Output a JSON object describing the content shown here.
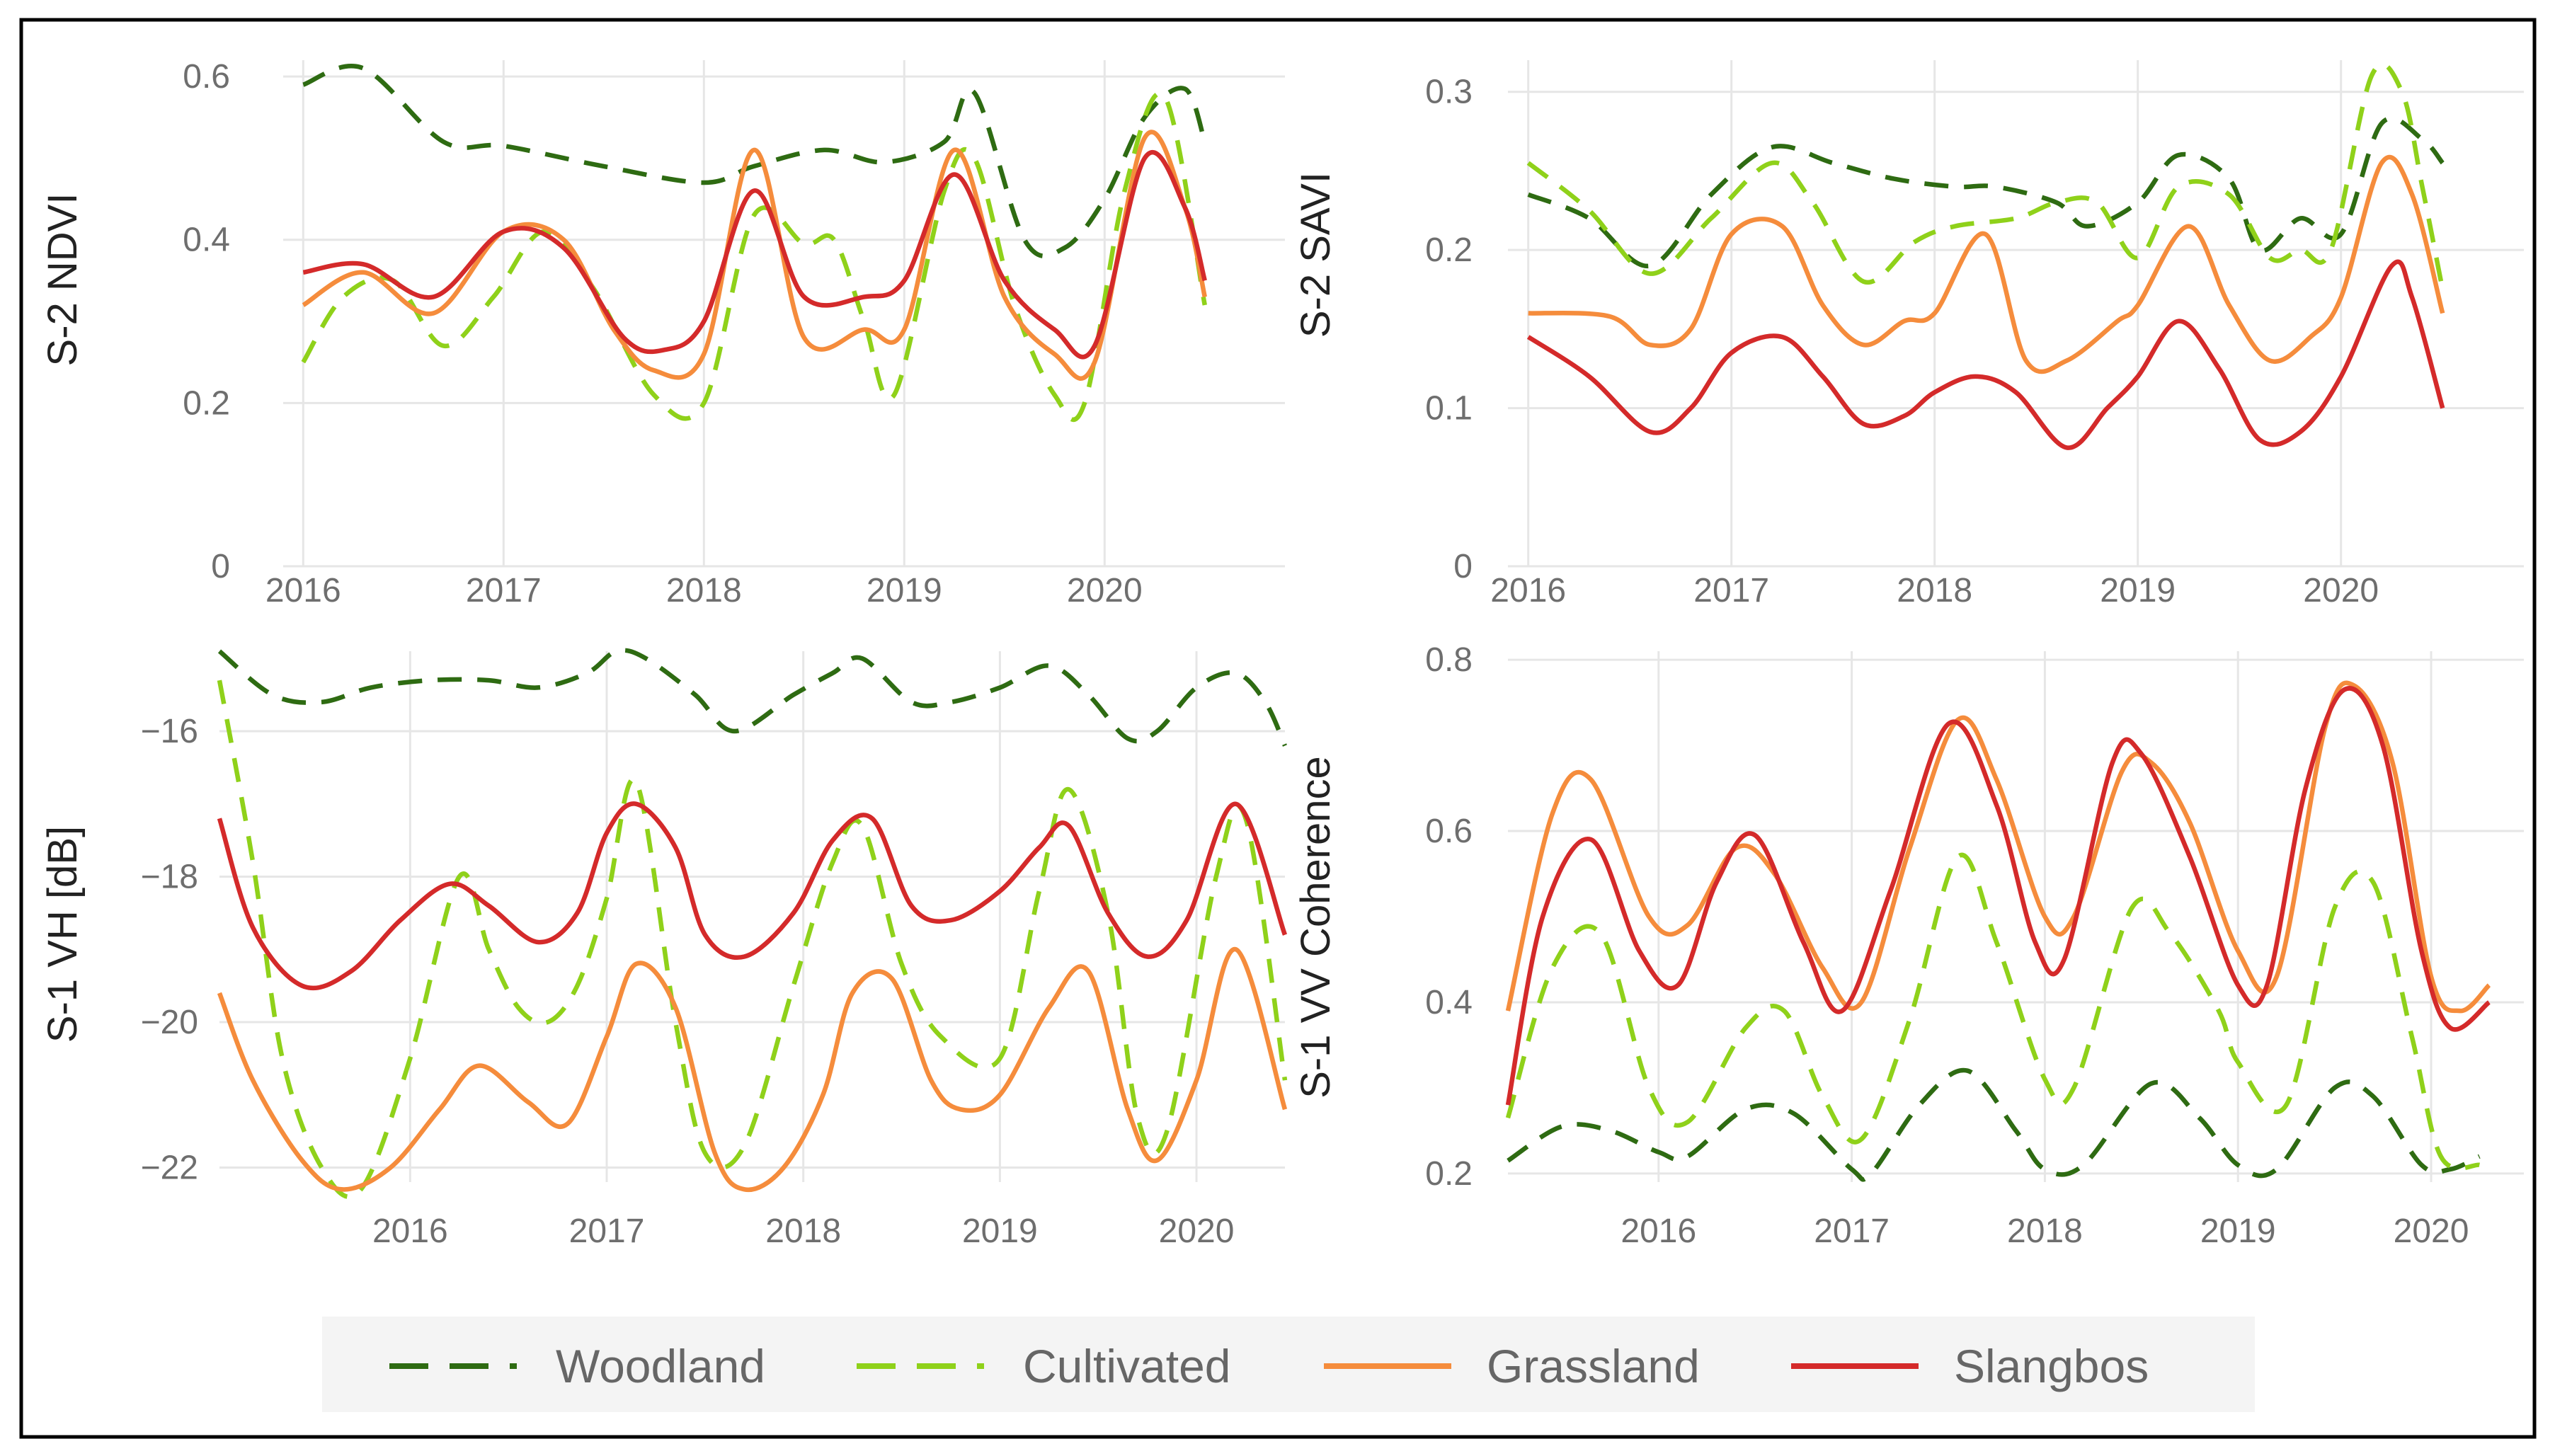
{
  "series_style": [
    {
      "name": "Woodland",
      "color": "#2e6b12",
      "dashed": true
    },
    {
      "name": "Cultivated",
      "color": "#8fd11a",
      "dashed": true
    },
    {
      "name": "Grassland",
      "color": "#f58c3c",
      "dashed": false
    },
    {
      "name": "Slangbos",
      "color": "#d42a2a",
      "dashed": false
    }
  ],
  "chart_data": [
    {
      "type": "line",
      "id": "ndvi",
      "ylabel": "S-2 NDVI",
      "xlim": [
        2015.9,
        2020.9
      ],
      "ylim": [
        0,
        0.62
      ],
      "yticks": [
        0,
        0.2,
        0.4,
        0.6
      ],
      "ytick_labels": [
        "0",
        "0.2",
        "0.4",
        "0.6"
      ],
      "xticks": [
        2016,
        2017,
        2018,
        2019,
        2020
      ],
      "xtick_labels": [
        "2016",
        "2017",
        "2018",
        "2019",
        "2020"
      ],
      "series": [
        {
          "name": "Woodland",
          "x": [
            2016.0,
            2016.3,
            2016.7,
            2017.0,
            2017.5,
            2018.0,
            2018.25,
            2018.6,
            2018.9,
            2019.2,
            2019.35,
            2019.6,
            2019.8,
            2020.0,
            2020.2,
            2020.4,
            2020.5
          ],
          "y": [
            0.59,
            0.61,
            0.52,
            0.515,
            0.49,
            0.47,
            0.49,
            0.51,
            0.495,
            0.52,
            0.58,
            0.4,
            0.39,
            0.45,
            0.55,
            0.585,
            0.52
          ]
        },
        {
          "name": "Cultivated",
          "x": [
            2016.0,
            2016.2,
            2016.45,
            2016.7,
            2016.95,
            2017.2,
            2017.45,
            2017.75,
            2018.0,
            2018.25,
            2018.5,
            2018.65,
            2018.8,
            2018.95,
            2019.2,
            2019.35,
            2019.55,
            2019.75,
            2019.9,
            2020.1,
            2020.3,
            2020.5
          ],
          "y": [
            0.25,
            0.33,
            0.35,
            0.27,
            0.33,
            0.41,
            0.34,
            0.21,
            0.2,
            0.43,
            0.395,
            0.4,
            0.3,
            0.21,
            0.46,
            0.5,
            0.32,
            0.21,
            0.2,
            0.46,
            0.575,
            0.32
          ]
        },
        {
          "name": "Grassland",
          "x": [
            2016.0,
            2016.3,
            2016.65,
            2017.0,
            2017.3,
            2017.55,
            2017.75,
            2018.0,
            2018.25,
            2018.5,
            2018.8,
            2019.0,
            2019.25,
            2019.5,
            2019.75,
            2019.95,
            2020.2,
            2020.4,
            2020.5
          ],
          "y": [
            0.32,
            0.36,
            0.31,
            0.41,
            0.4,
            0.29,
            0.24,
            0.26,
            0.51,
            0.28,
            0.29,
            0.29,
            0.51,
            0.33,
            0.26,
            0.25,
            0.525,
            0.44,
            0.33
          ]
        },
        {
          "name": "Slangbos",
          "x": [
            2016.0,
            2016.3,
            2016.65,
            2017.0,
            2017.3,
            2017.6,
            2017.8,
            2018.0,
            2018.25,
            2018.5,
            2018.8,
            2019.0,
            2019.25,
            2019.5,
            2019.75,
            2019.95,
            2020.2,
            2020.4,
            2020.5
          ],
          "y": [
            0.36,
            0.37,
            0.33,
            0.41,
            0.39,
            0.28,
            0.265,
            0.3,
            0.46,
            0.33,
            0.33,
            0.35,
            0.48,
            0.35,
            0.29,
            0.27,
            0.5,
            0.44,
            0.35
          ]
        }
      ]
    },
    {
      "type": "line",
      "id": "savi",
      "ylabel": "S-2 SAVI",
      "xlim": [
        2015.9,
        2020.9
      ],
      "ylim": [
        0,
        0.32
      ],
      "yticks": [
        0,
        0.1,
        0.2,
        0.3
      ],
      "ytick_labels": [
        "0",
        "0.1",
        "0.2",
        "0.3"
      ],
      "xticks": [
        2016,
        2017,
        2018,
        2019,
        2020
      ],
      "xtick_labels": [
        "2016",
        "2017",
        "2018",
        "2019",
        "2020"
      ],
      "series": [
        {
          "name": "Woodland",
          "x": [
            2016.0,
            2016.3,
            2016.6,
            2016.9,
            2017.2,
            2017.5,
            2017.8,
            2018.1,
            2018.3,
            2018.6,
            2018.75,
            2019.0,
            2019.2,
            2019.45,
            2019.6,
            2019.8,
            2020.0,
            2020.2,
            2020.4,
            2020.5
          ],
          "y": [
            0.235,
            0.22,
            0.19,
            0.235,
            0.265,
            0.255,
            0.245,
            0.24,
            0.24,
            0.23,
            0.215,
            0.23,
            0.26,
            0.245,
            0.2,
            0.22,
            0.21,
            0.28,
            0.27,
            0.255
          ]
        },
        {
          "name": "Cultivated",
          "x": [
            2016.0,
            2016.3,
            2016.6,
            2016.9,
            2017.2,
            2017.4,
            2017.65,
            2017.9,
            2018.1,
            2018.4,
            2018.6,
            2018.8,
            2019.0,
            2019.2,
            2019.45,
            2019.65,
            2019.8,
            2019.95,
            2020.15,
            2020.3,
            2020.4,
            2020.5
          ],
          "y": [
            0.255,
            0.225,
            0.185,
            0.22,
            0.255,
            0.23,
            0.18,
            0.205,
            0.215,
            0.22,
            0.23,
            0.23,
            0.195,
            0.24,
            0.235,
            0.195,
            0.2,
            0.2,
            0.31,
            0.3,
            0.24,
            0.175
          ]
        },
        {
          "name": "Grassland",
          "x": [
            2016.0,
            2016.4,
            2016.6,
            2016.8,
            2017.0,
            2017.25,
            2017.45,
            2017.65,
            2017.85,
            2018.0,
            2018.25,
            2018.45,
            2018.65,
            2018.9,
            2019.0,
            2019.25,
            2019.45,
            2019.65,
            2019.85,
            2020.0,
            2020.2,
            2020.35,
            2020.5
          ],
          "y": [
            0.16,
            0.158,
            0.14,
            0.15,
            0.21,
            0.215,
            0.165,
            0.14,
            0.155,
            0.16,
            0.21,
            0.13,
            0.13,
            0.155,
            0.165,
            0.215,
            0.165,
            0.13,
            0.145,
            0.17,
            0.255,
            0.235,
            0.16
          ]
        },
        {
          "name": "Slangbos",
          "x": [
            2016.0,
            2016.3,
            2016.6,
            2016.8,
            2017.0,
            2017.25,
            2017.45,
            2017.65,
            2017.85,
            2018.0,
            2018.2,
            2018.4,
            2018.65,
            2018.85,
            2019.0,
            2019.2,
            2019.4,
            2019.6,
            2019.8,
            2020.0,
            2020.25,
            2020.35,
            2020.5
          ],
          "y": [
            0.145,
            0.12,
            0.085,
            0.1,
            0.135,
            0.145,
            0.12,
            0.09,
            0.095,
            0.11,
            0.12,
            0.11,
            0.075,
            0.1,
            0.12,
            0.155,
            0.125,
            0.08,
            0.085,
            0.12,
            0.19,
            0.17,
            0.1
          ]
        }
      ]
    },
    {
      "type": "line",
      "id": "vh",
      "ylabel": "S-1 VH [dB]",
      "xlim": [
        2015.03,
        2020.45
      ],
      "ylim": [
        -22.2,
        -14.9
      ],
      "yticks": [
        -22,
        -20,
        -18,
        -16
      ],
      "ytick_labels": [
        "−22",
        "−20",
        "−18",
        "−16"
      ],
      "xticks": [
        2016,
        2017,
        2018,
        2019,
        2020
      ],
      "xtick_labels": [
        "2016",
        "2017",
        "2018",
        "2019",
        "2020"
      ],
      "series": [
        {
          "name": "Woodland",
          "x": [
            2015.03,
            2015.3,
            2015.55,
            2015.8,
            2016.1,
            2016.4,
            2016.65,
            2016.9,
            2017.05,
            2017.2,
            2017.45,
            2017.65,
            2017.95,
            2018.15,
            2018.3,
            2018.55,
            2018.75,
            2019.0,
            2019.25,
            2019.45,
            2019.65,
            2019.8,
            2020.0,
            2020.2,
            2020.35,
            2020.45
          ],
          "y": [
            -14.9,
            -15.5,
            -15.6,
            -15.4,
            -15.3,
            -15.3,
            -15.4,
            -15.2,
            -14.9,
            -15.0,
            -15.5,
            -16.0,
            -15.5,
            -15.2,
            -15.0,
            -15.6,
            -15.6,
            -15.4,
            -15.1,
            -15.5,
            -16.1,
            -16.0,
            -15.4,
            -15.2,
            -15.6,
            -16.2
          ]
        },
        {
          "name": "Cultivated",
          "x": [
            2015.03,
            2015.2,
            2015.35,
            2015.55,
            2015.75,
            2016.0,
            2016.25,
            2016.4,
            2016.55,
            2016.7,
            2016.85,
            2017.0,
            2017.15,
            2017.35,
            2017.5,
            2017.7,
            2017.95,
            2018.15,
            2018.3,
            2018.5,
            2018.7,
            2019.0,
            2019.2,
            2019.35,
            2019.55,
            2019.7,
            2019.85,
            2020.1,
            2020.25,
            2020.45
          ],
          "y": [
            -15.3,
            -17.8,
            -20.5,
            -22.0,
            -22.3,
            -20.5,
            -18.0,
            -19.0,
            -19.8,
            -20.0,
            -19.5,
            -18.3,
            -16.7,
            -20.0,
            -21.8,
            -21.7,
            -19.5,
            -17.8,
            -17.3,
            -19.2,
            -20.2,
            -20.5,
            -18.2,
            -16.8,
            -18.5,
            -21.3,
            -21.5,
            -18.0,
            -17.2,
            -20.8
          ]
        },
        {
          "name": "Grassland",
          "x": [
            2015.03,
            2015.2,
            2015.45,
            2015.65,
            2015.9,
            2016.15,
            2016.35,
            2016.6,
            2016.8,
            2017.0,
            2017.15,
            2017.35,
            2017.55,
            2017.7,
            2017.9,
            2018.1,
            2018.25,
            2018.45,
            2018.65,
            2018.8,
            2019.0,
            2019.25,
            2019.45,
            2019.65,
            2019.8,
            2020.0,
            2020.2,
            2020.45
          ],
          "y": [
            -19.6,
            -20.8,
            -21.9,
            -22.3,
            -22.0,
            -21.2,
            -20.6,
            -21.1,
            -21.4,
            -20.2,
            -19.2,
            -19.8,
            -21.8,
            -22.3,
            -22.0,
            -21.0,
            -19.6,
            -19.4,
            -20.8,
            -21.2,
            -21.0,
            -19.8,
            -19.3,
            -21.2,
            -21.9,
            -20.8,
            -19.0,
            -21.2
          ]
        },
        {
          "name": "Slangbos",
          "x": [
            2015.03,
            2015.2,
            2015.45,
            2015.7,
            2015.95,
            2016.2,
            2016.4,
            2016.65,
            2016.85,
            2017.0,
            2017.15,
            2017.35,
            2017.5,
            2017.7,
            2017.95,
            2018.15,
            2018.35,
            2018.55,
            2018.75,
            2019.0,
            2019.2,
            2019.35,
            2019.55,
            2019.75,
            2019.95,
            2020.2,
            2020.45
          ],
          "y": [
            -17.2,
            -18.7,
            -19.5,
            -19.3,
            -18.6,
            -18.1,
            -18.4,
            -18.9,
            -18.5,
            -17.4,
            -17.0,
            -17.6,
            -18.8,
            -19.1,
            -18.5,
            -17.5,
            -17.2,
            -18.4,
            -18.6,
            -18.2,
            -17.6,
            -17.3,
            -18.5,
            -19.1,
            -18.6,
            -17.0,
            -18.8
          ]
        }
      ]
    },
    {
      "type": "line",
      "id": "coherence",
      "ylabel": "S-1 VV Coherence",
      "xlim": [
        2015.22,
        2020.48
      ],
      "ylim": [
        0.19,
        0.81
      ],
      "yticks": [
        0.2,
        0.4,
        0.6,
        0.8
      ],
      "ytick_labels": [
        "0.2",
        "0.4",
        "0.6",
        "0.8"
      ],
      "xticks": [
        2016,
        2017,
        2018,
        2019,
        2020
      ],
      "xtick_labels": [
        "2016",
        "2017",
        "2018",
        "2019",
        "2020"
      ],
      "series": [
        {
          "name": "Woodland",
          "x": [
            2015.22,
            2015.5,
            2015.75,
            2016.0,
            2016.15,
            2016.45,
            2016.7,
            2017.0,
            2017.1,
            2017.35,
            2017.6,
            2017.85,
            2018.0,
            2018.2,
            2018.55,
            2018.8,
            2019.0,
            2019.2,
            2019.5,
            2019.7,
            2019.95,
            2020.1,
            2020.25
          ],
          "y": [
            0.215,
            0.255,
            0.25,
            0.225,
            0.22,
            0.275,
            0.27,
            0.205,
            0.2,
            0.28,
            0.32,
            0.25,
            0.205,
            0.21,
            0.305,
            0.265,
            0.21,
            0.205,
            0.3,
            0.29,
            0.21,
            0.205,
            0.22
          ]
        },
        {
          "name": "Cultivated",
          "x": [
            2015.22,
            2015.45,
            2015.7,
            2015.95,
            2016.15,
            2016.45,
            2016.65,
            2016.85,
            2017.05,
            2017.3,
            2017.55,
            2017.75,
            2018.0,
            2018.15,
            2018.45,
            2018.65,
            2018.9,
            2019.0,
            2019.25,
            2019.5,
            2019.7,
            2019.9,
            2020.05,
            2020.25
          ],
          "y": [
            0.265,
            0.44,
            0.48,
            0.3,
            0.26,
            0.37,
            0.39,
            0.29,
            0.24,
            0.38,
            0.57,
            0.47,
            0.31,
            0.3,
            0.51,
            0.48,
            0.39,
            0.33,
            0.28,
            0.51,
            0.54,
            0.36,
            0.22,
            0.21
          ]
        },
        {
          "name": "Grassland",
          "x": [
            2015.22,
            2015.45,
            2015.65,
            2015.95,
            2016.15,
            2016.4,
            2016.6,
            2016.85,
            2017.05,
            2017.3,
            2017.55,
            2017.75,
            2018.0,
            2018.15,
            2018.4,
            2018.55,
            2018.75,
            2019.0,
            2019.2,
            2019.45,
            2019.6,
            2019.8,
            2020.0,
            2020.15,
            2020.3
          ],
          "y": [
            0.39,
            0.62,
            0.66,
            0.5,
            0.49,
            0.58,
            0.55,
            0.44,
            0.4,
            0.58,
            0.73,
            0.66,
            0.5,
            0.5,
            0.67,
            0.68,
            0.61,
            0.46,
            0.43,
            0.72,
            0.77,
            0.68,
            0.43,
            0.39,
            0.42
          ]
        },
        {
          "name": "Slangbos",
          "x": [
            2015.22,
            2015.4,
            2015.65,
            2015.9,
            2016.1,
            2016.3,
            2016.5,
            2016.75,
            2016.95,
            2017.2,
            2017.5,
            2017.75,
            2017.95,
            2018.1,
            2018.35,
            2018.5,
            2018.75,
            2019.0,
            2019.15,
            2019.35,
            2019.55,
            2019.75,
            2019.95,
            2020.1,
            2020.3
          ],
          "y": [
            0.28,
            0.5,
            0.59,
            0.46,
            0.42,
            0.54,
            0.595,
            0.47,
            0.39,
            0.53,
            0.725,
            0.63,
            0.47,
            0.45,
            0.68,
            0.69,
            0.57,
            0.42,
            0.42,
            0.65,
            0.765,
            0.7,
            0.46,
            0.37,
            0.4
          ]
        }
      ]
    }
  ]
}
